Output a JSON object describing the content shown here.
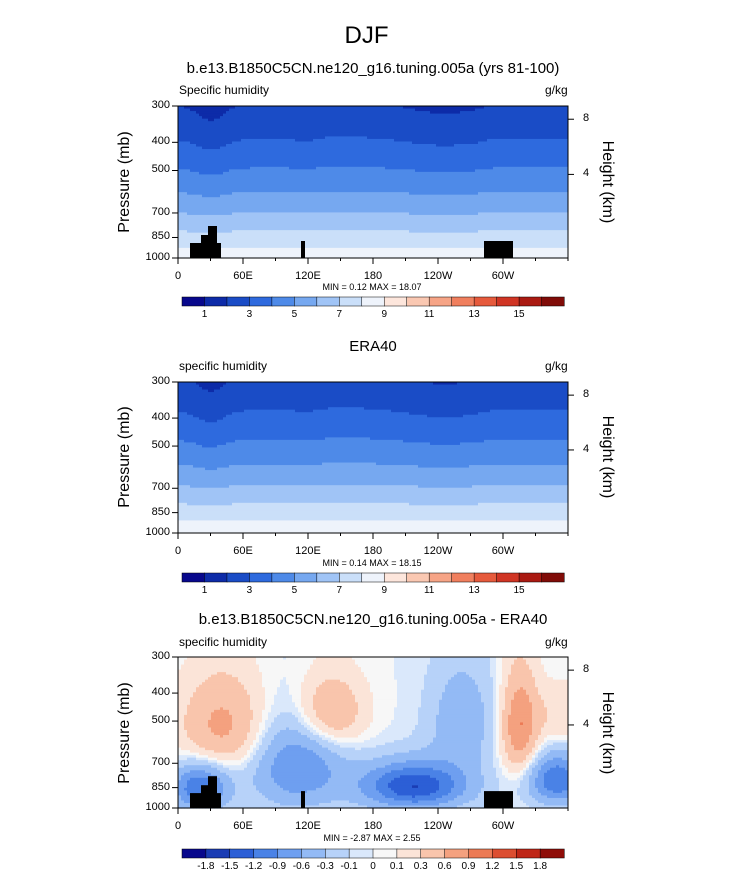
{
  "title": "DJF",
  "colors": {
    "seq": [
      "#08088c",
      "#0d2ba8",
      "#1a4cc6",
      "#2e6ade",
      "#4e8ae8",
      "#76a8f0",
      "#a0c4f6",
      "#cadff9",
      "#eef3fb",
      "#fde6dc",
      "#fac8b2",
      "#f6a486",
      "#f07f5e",
      "#e65a3c",
      "#d03524",
      "#aa1a12",
      "#800c08"
    ],
    "div": [
      "#08088c",
      "#1a3cb4",
      "#2c5fd6",
      "#4a82e6",
      "#6e9ff0",
      "#93baf5",
      "#b7d2f9",
      "#dae8fb",
      "#f7f7f7",
      "#fbe4d8",
      "#f9c5ac",
      "#f4a17f",
      "#ec7a55",
      "#dc4e31",
      "#bf2617",
      "#8f0d08"
    ],
    "land": "#000000"
  },
  "chart_data": [
    {
      "type": "heatmap",
      "title": "b.e13.B1850C5CN.ne120_g16.tuning.005a (yrs 81-100)",
      "variable": "Specific humidity",
      "units": "g/kg",
      "ylabel": "Pressure (mb)",
      "ylabel_right": "Height (km)",
      "yticks": [
        "300",
        "400",
        "500",
        "700",
        "850",
        "1000"
      ],
      "yticks_right": [
        "8",
        "4"
      ],
      "xticks": [
        "0",
        "60E",
        "120E",
        "180",
        "120W",
        "60W"
      ],
      "levels": [
        "1",
        "3",
        "5",
        "7",
        "9",
        "11",
        "13",
        "15"
      ],
      "min_max": "MIN =  0.12  MAX =  18.07",
      "min": 0.12,
      "max": 18.07
    },
    {
      "type": "heatmap",
      "title": "ERA40",
      "variable": "specific humidity",
      "units": "g/kg",
      "ylabel": "Pressure (mb)",
      "ylabel_right": "Height (km)",
      "yticks": [
        "300",
        "400",
        "500",
        "700",
        "850",
        "1000"
      ],
      "yticks_right": [
        "8",
        "4"
      ],
      "xticks": [
        "0",
        "60E",
        "120E",
        "180",
        "120W",
        "60W"
      ],
      "levels": [
        "1",
        "3",
        "5",
        "7",
        "9",
        "11",
        "13",
        "15"
      ],
      "min_max": "MIN =  0.14  MAX =  18.15",
      "min": 0.14,
      "max": 18.15
    },
    {
      "type": "heatmap",
      "title": "b.e13.B1850C5CN.ne120_g16.tuning.005a - ERA40",
      "variable": "specific humidity",
      "units": "g/kg",
      "ylabel": "Pressure (mb)",
      "ylabel_right": "Height (km)",
      "yticks": [
        "300",
        "400",
        "500",
        "700",
        "850",
        "1000"
      ],
      "yticks_right": [
        "8",
        "4"
      ],
      "xticks": [
        "0",
        "60E",
        "120E",
        "180",
        "120W",
        "60W"
      ],
      "levels": [
        "-1.8",
        "-1.5",
        "-1.2",
        "-0.9",
        "-0.6",
        "-0.3",
        "-0.1",
        "0",
        "0.1",
        "0.3",
        "0.6",
        "0.9",
        "1.2",
        "1.5",
        "1.8"
      ],
      "min_max": "MIN = -2.87  MAX =  2.55",
      "min": -2.87,
      "max": 2.55
    }
  ]
}
